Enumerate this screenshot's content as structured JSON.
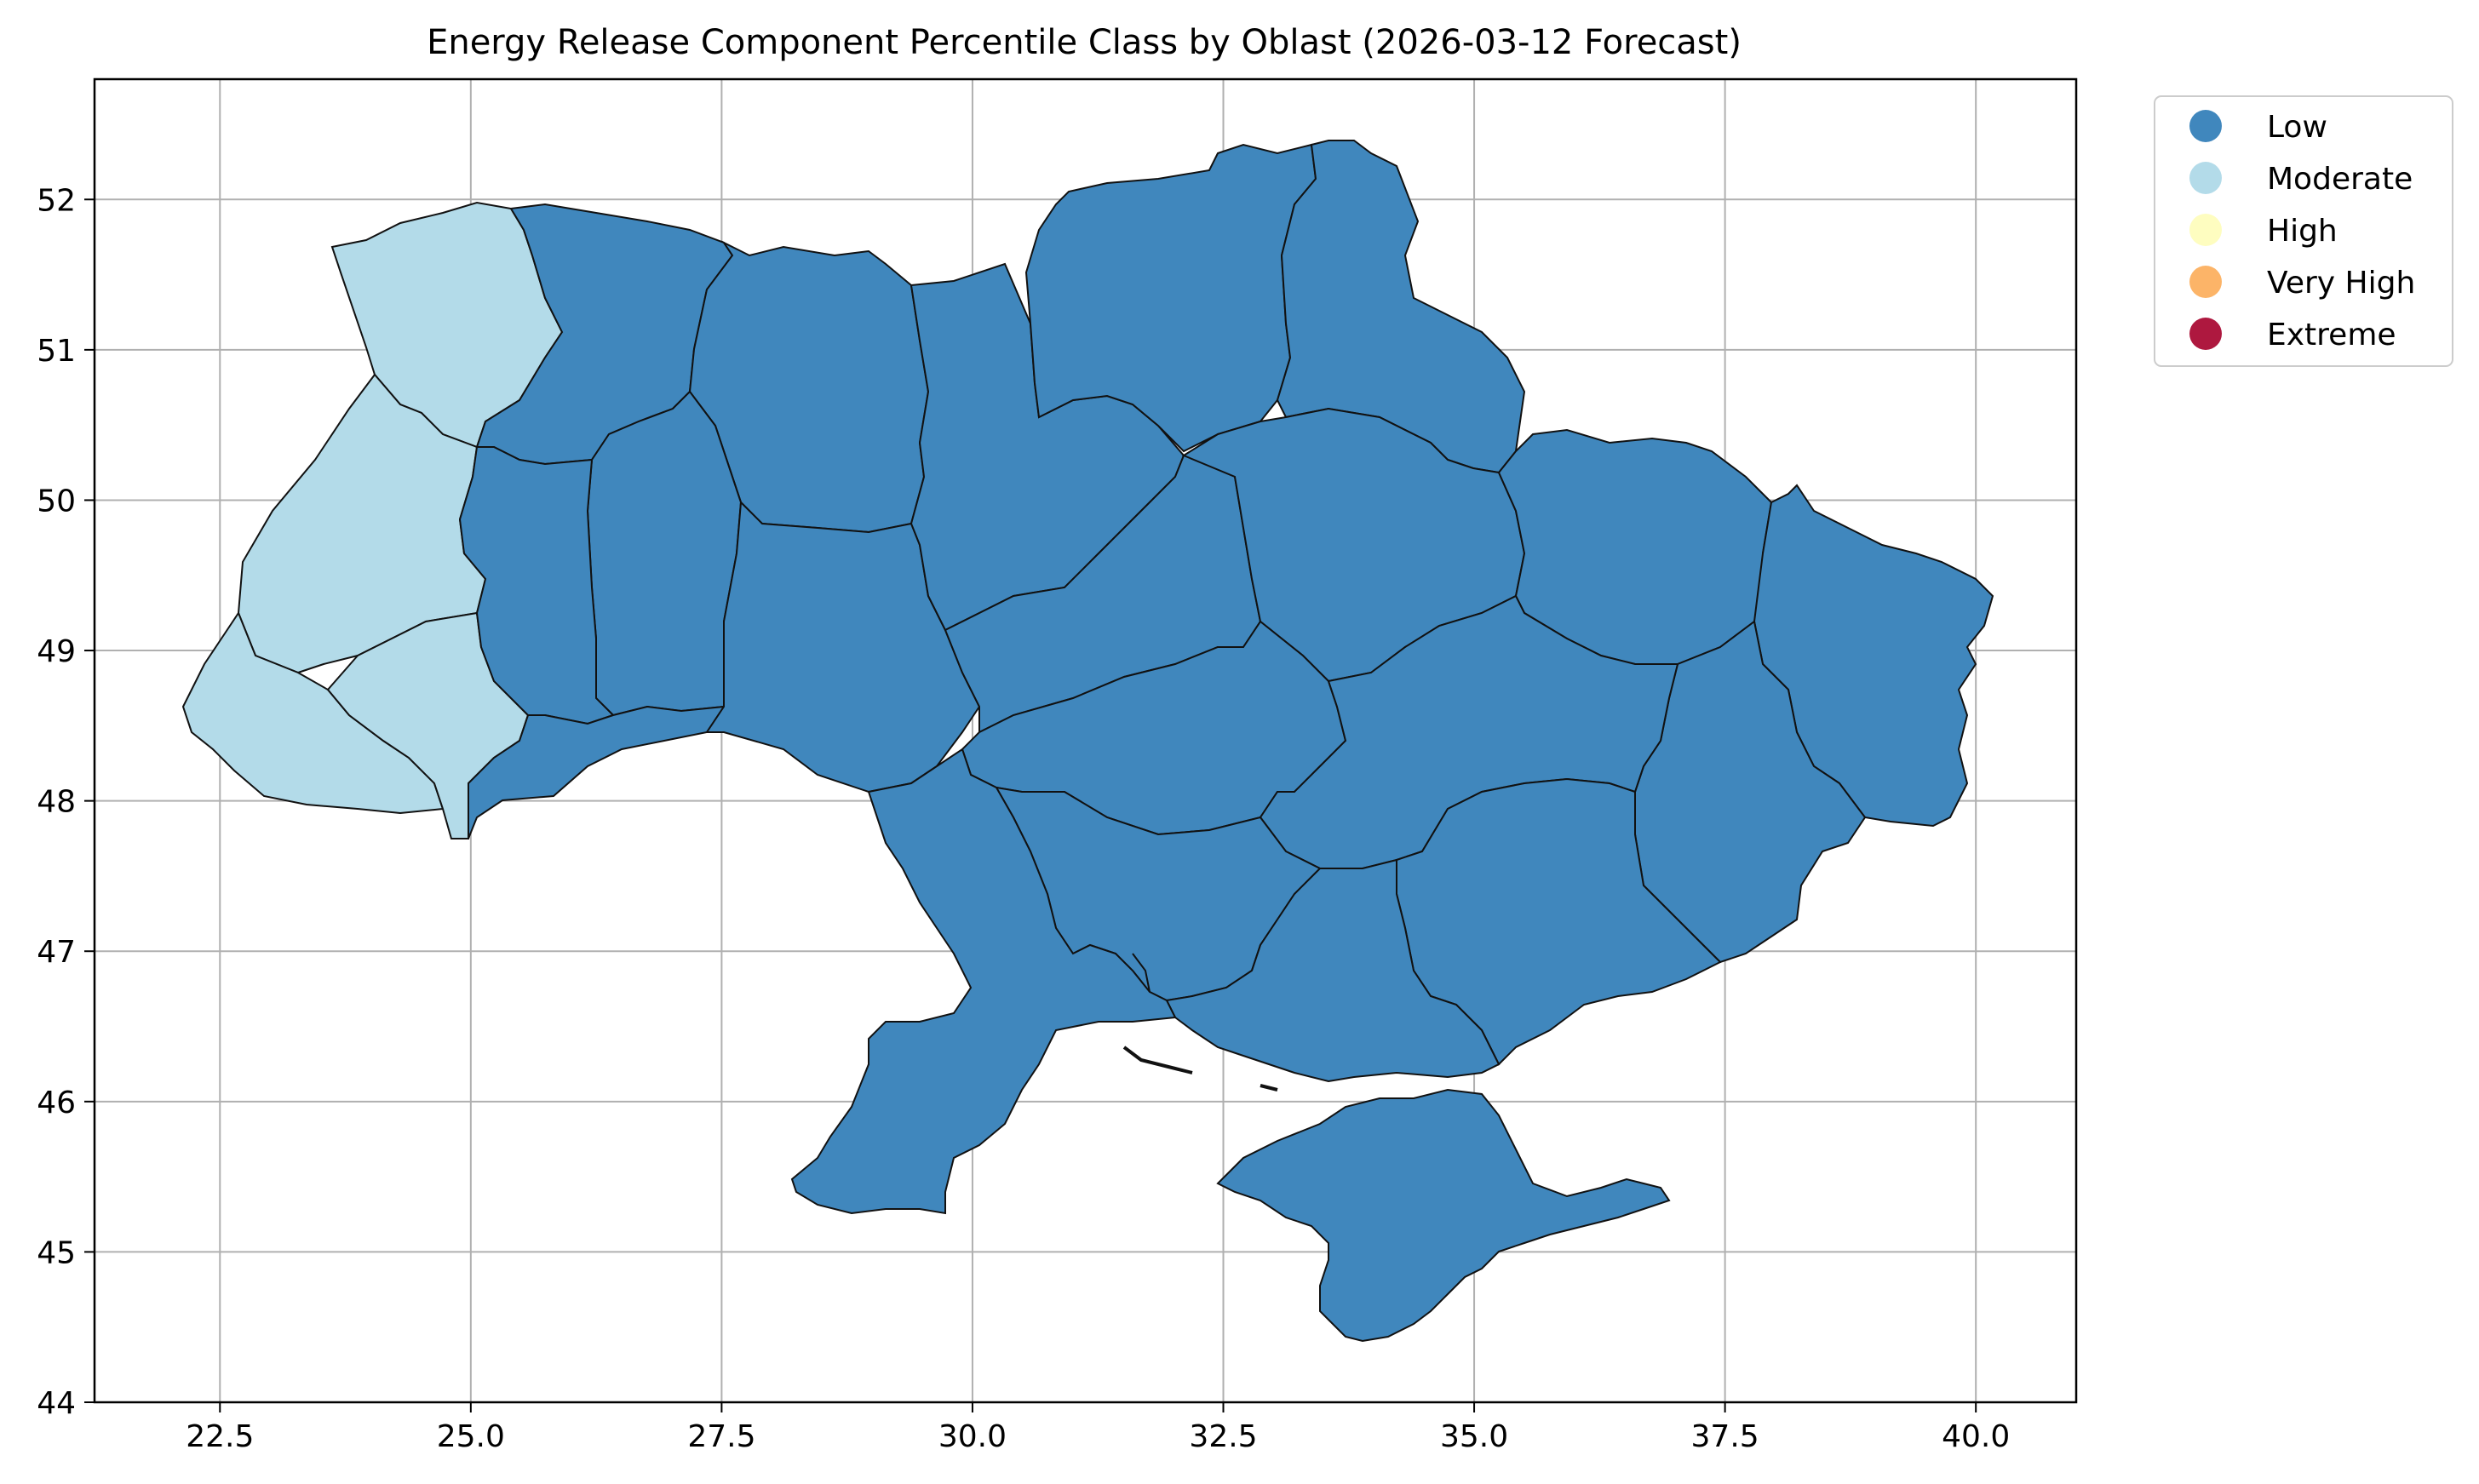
{
  "title": "Energy Release Component Percentile Class by Oblast (2026-03-12 Forecast)",
  "axes": {
    "x_ticks": [
      "22.5",
      "25.0",
      "27.5",
      "30.0",
      "32.5",
      "35.0",
      "37.5",
      "40.0"
    ],
    "y_ticks": [
      "44",
      "45",
      "46",
      "47",
      "48",
      "49",
      "50",
      "51",
      "52"
    ],
    "xlim": [
      21.25,
      41.0
    ],
    "ylim": [
      44.0,
      52.8
    ],
    "grid": true
  },
  "legend": {
    "placement": "outside-top-right",
    "items": [
      {
        "label": "Low",
        "color": "#4087bd"
      },
      {
        "label": "Moderate",
        "color": "#b3dbe9"
      },
      {
        "label": "High",
        "color": "#fefdc0"
      },
      {
        "label": "Very High",
        "color": "#fcb468"
      },
      {
        "label": "Extreme",
        "color": "#ae183f"
      }
    ]
  },
  "colors": {
    "low": "#4087bd",
    "moderate": "#b3dbe9",
    "border": "#111111",
    "grid": "#b0b0b0"
  }
}
